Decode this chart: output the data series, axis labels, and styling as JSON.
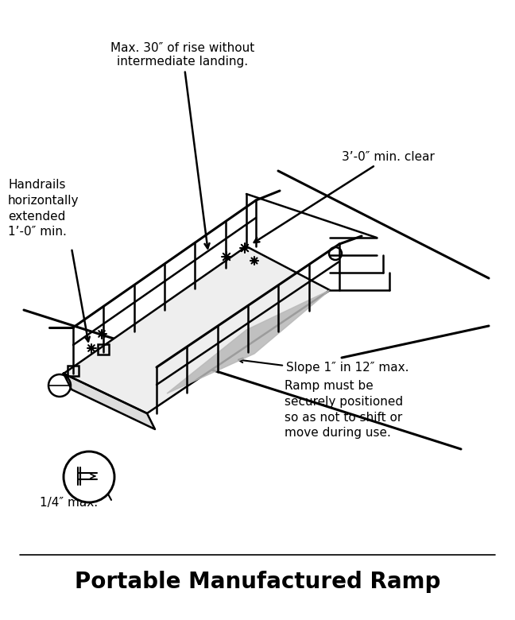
{
  "title": "Portable Manufactured Ramp",
  "title_fontsize": 20,
  "title_fontweight": "bold",
  "bg_color": "#ffffff",
  "line_color": "#000000",
  "annotation_fontsize": 11,
  "annotations": {
    "max_rise": "Max. 30″ of rise without\nintermediate landing.",
    "handrails": "Handrails\nhorizontally\nextended\n1’-0″ min.",
    "min_clear": "3’-0″ min. clear",
    "slope": "Slope 1″ in 12″ max.",
    "ramp_note": "Ramp must be\nsecurely positioned\nso as not to shift or\nmove during use.",
    "quarter_inch": "1/4″ max."
  }
}
